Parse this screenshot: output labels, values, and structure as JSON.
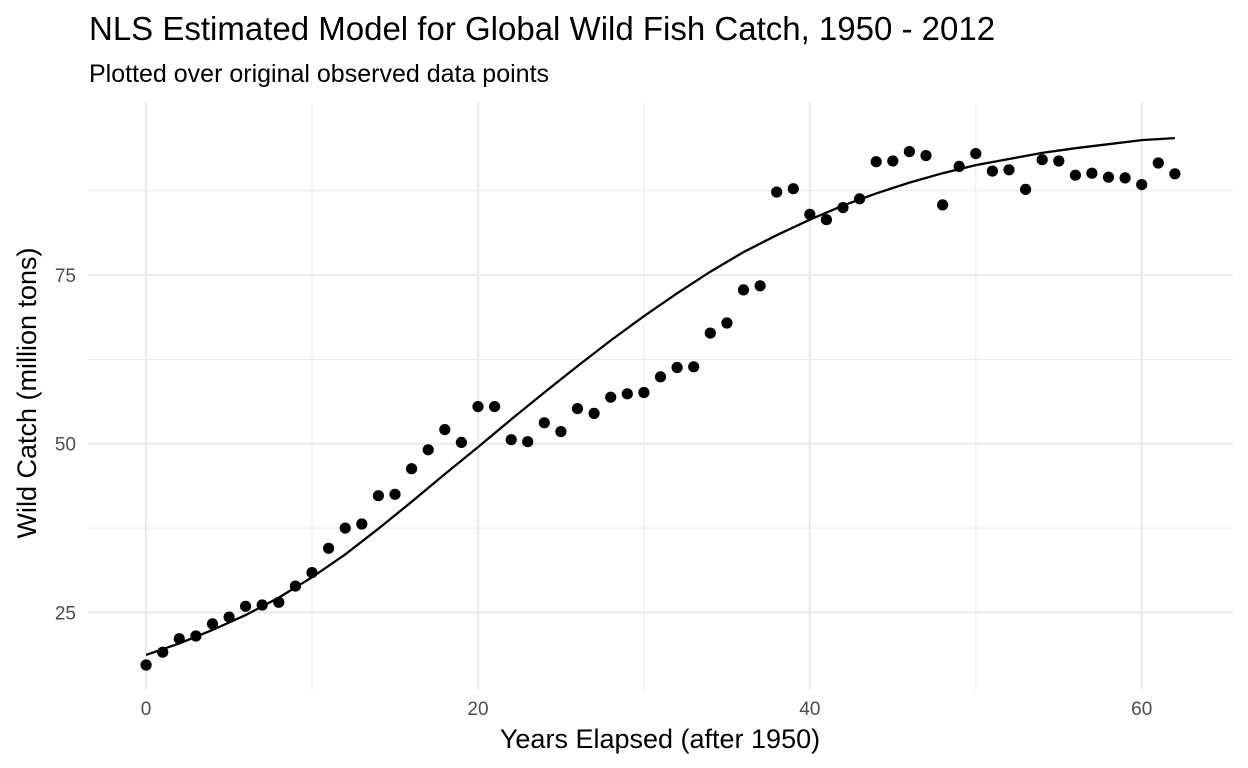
{
  "chart_data": {
    "type": "scatter",
    "title": "NLS Estimated Model for Global Wild Fish Catch, 1950 - 2012",
    "subtitle": "Plotted over original observed data points",
    "xlabel": "Years Elapsed (after 1950)",
    "ylabel": "Wild Catch (million tons)",
    "xlim": [
      -3.5,
      65.5
    ],
    "ylim": [
      13.5,
      100.5
    ],
    "x_ticks": [
      0,
      20,
      40,
      60
    ],
    "y_ticks": [
      25,
      50,
      75
    ],
    "x_tick_labels": [
      "0",
      "20",
      "40",
      "60"
    ],
    "y_tick_labels": [
      "25",
      "50",
      "75"
    ],
    "grid": true,
    "colors": {
      "points": "#000000",
      "line": "#000000",
      "grid": "#ebebeb",
      "tick_text": "#4d4d4d"
    },
    "series": [
      {
        "kind": "points",
        "x": [
          0,
          1,
          2,
          3,
          4,
          5,
          6,
          7,
          8,
          9,
          10,
          11,
          12,
          13,
          14,
          15,
          16,
          17,
          18,
          19,
          20,
          21,
          22,
          23,
          24,
          25,
          26,
          27,
          28,
          29,
          30,
          31,
          32,
          33,
          34,
          35,
          36,
          37,
          38,
          39,
          40,
          41,
          42,
          43,
          44,
          45,
          46,
          47,
          48,
          49,
          50,
          51,
          52,
          53,
          54,
          55,
          56,
          57,
          58,
          59,
          60,
          61,
          62
        ],
        "y": [
          17.2,
          19.1,
          21.1,
          21.5,
          23.3,
          24.3,
          25.9,
          26.1,
          26.5,
          28.9,
          30.9,
          34.5,
          37.5,
          38.1,
          42.3,
          42.5,
          46.3,
          49.1,
          52.1,
          50.2,
          55.5,
          55.5,
          50.6,
          50.3,
          53.1,
          51.8,
          55.2,
          54.5,
          56.9,
          57.4,
          57.6,
          59.9,
          61.3,
          61.4,
          66.4,
          67.9,
          72.8,
          73.4,
          87.3,
          87.8,
          84.0,
          83.2,
          85.0,
          86.3,
          91.8,
          91.9,
          93.3,
          92.7,
          85.4,
          91.1,
          93.0,
          90.4,
          90.6,
          87.7,
          92.1,
          91.9,
          89.8,
          90.1,
          89.5,
          89.4,
          88.4,
          91.6,
          90.0
        ]
      },
      {
        "kind": "line",
        "x": [
          0,
          2,
          4,
          6,
          8,
          10,
          12,
          14,
          16,
          18,
          20,
          22,
          24,
          26,
          28,
          30,
          32,
          34,
          36,
          38,
          40,
          42,
          44,
          46,
          48,
          50,
          52,
          54,
          56,
          58,
          60,
          62
        ],
        "y": [
          18.7,
          20.4,
          22.4,
          24.6,
          27.2,
          30.2,
          33.6,
          37.4,
          41.4,
          45.5,
          49.5,
          53.6,
          57.6,
          61.5,
          65.3,
          68.9,
          72.3,
          75.5,
          78.4,
          80.9,
          83.2,
          85.3,
          87.1,
          88.7,
          90.1,
          91.3,
          92.2,
          93.1,
          93.8,
          94.4,
          95.0,
          95.3
        ]
      }
    ]
  }
}
